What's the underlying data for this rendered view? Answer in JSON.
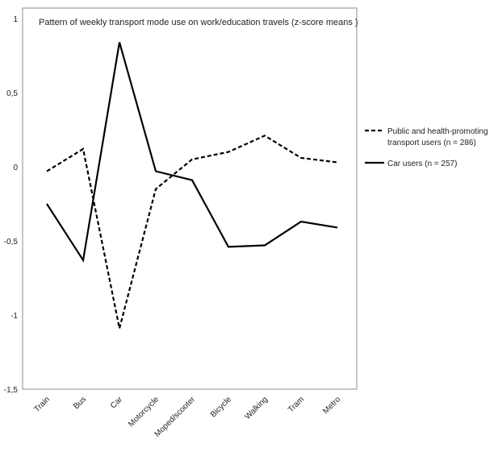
{
  "chart_data": {
    "type": "line",
    "title": "Pattern of weekly transport mode use on work/education travels  (z-score means )",
    "xlabel": "",
    "ylabel": "",
    "categories": [
      "Train",
      "Bus",
      "Car",
      "Motorcycle",
      "Moped/scooter",
      "Bicycle",
      "Walking",
      "Tram",
      "Metro"
    ],
    "ylim": [
      -1.5,
      1
    ],
    "yticks": [
      -1.5,
      -1,
      -0.5,
      0,
      0.5,
      1
    ],
    "ytick_labels": [
      "-1,5",
      "-1",
      "-0,5",
      "0",
      "0,5",
      "1"
    ],
    "grid": false,
    "legend_position": "right",
    "series": [
      {
        "name": "Public and health-promoting transport users (n = 286)",
        "legend_lines": [
          "Public and health-promoting",
          "transport users (n = 286)"
        ],
        "style": "dashed",
        "color": "#000000",
        "values": [
          -0.03,
          0.12,
          -1.09,
          -0.15,
          0.05,
          0.1,
          0.21,
          0.06,
          0.03
        ]
      },
      {
        "name": "Car users (n = 257)",
        "legend_lines": [
          "Car users (n = 257)"
        ],
        "style": "solid",
        "color": "#000000",
        "values": [
          -0.25,
          -0.63,
          0.84,
          -0.03,
          -0.09,
          -0.54,
          -0.53,
          -0.37,
          -0.41
        ]
      }
    ]
  }
}
